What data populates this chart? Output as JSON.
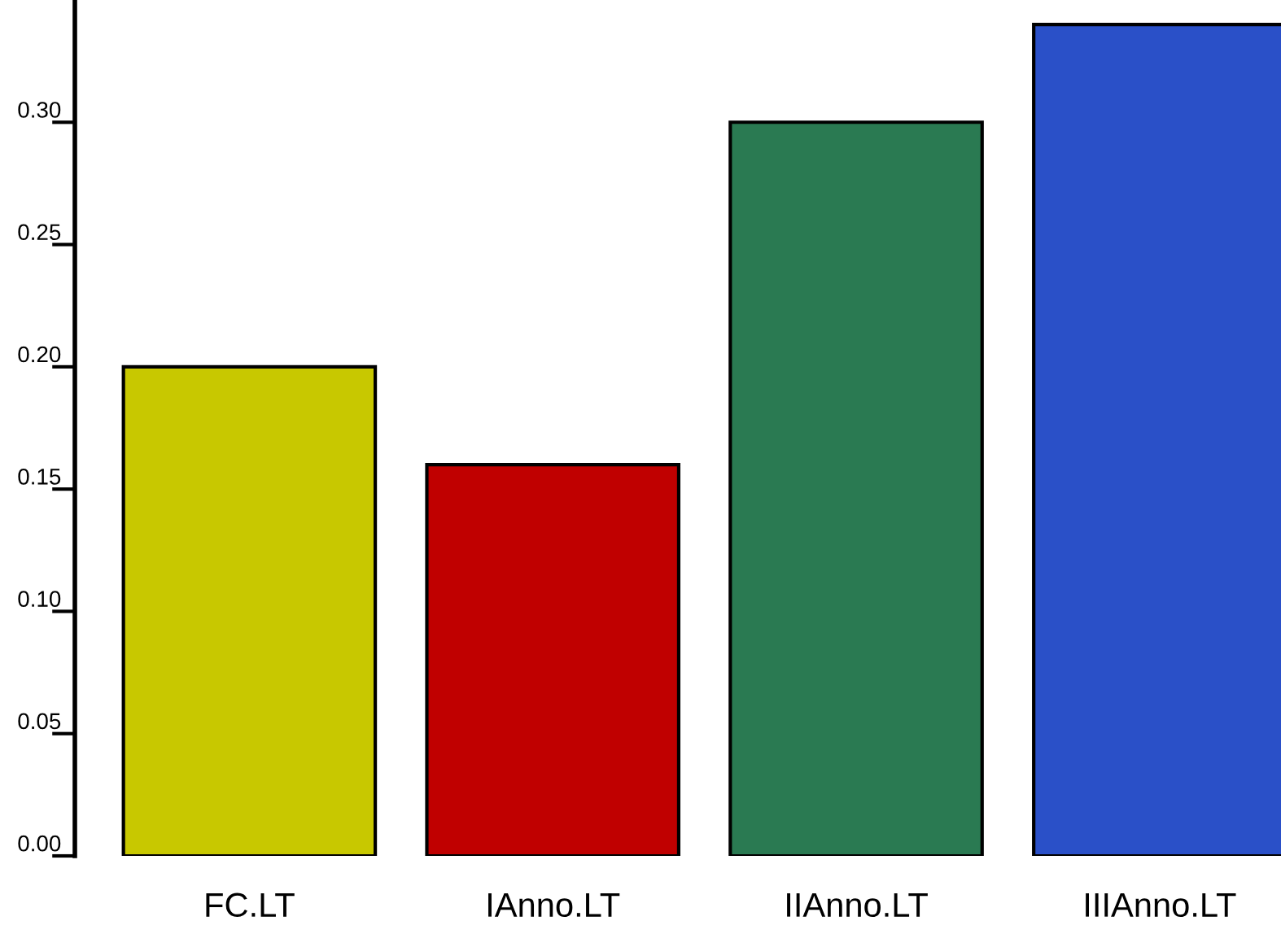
{
  "chart_data": {
    "type": "bar",
    "categories": [
      "FC.LT",
      "IAnno.LT",
      "IIAnno.LT",
      "IIIAnno.LT"
    ],
    "values": [
      0.2,
      0.16,
      0.3,
      0.34
    ],
    "colors": [
      "#c8c800",
      "#c00000",
      "#2a7a52",
      "#2a50c8"
    ],
    "ylim": [
      0,
      0.35
    ],
    "yticks": [
      {
        "value": 0,
        "label": "0.00"
      },
      0.05,
      {
        "value": 0.1,
        "label": "0.10"
      },
      0.15,
      {
        "value": 0.2,
        "label": "0.20"
      },
      0.25,
      {
        "value": 0.3,
        "label": "0.30"
      }
    ],
    "grid": false,
    "legend": false
  }
}
